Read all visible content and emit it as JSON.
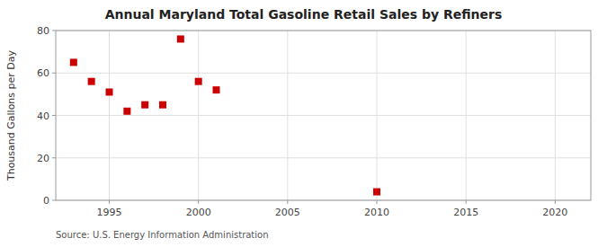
{
  "chart_data": {
    "type": "scatter",
    "title": "Annual Maryland Total Gasoline Retail Sales by Refiners",
    "ylabel": "Thousand Gallons per Day",
    "source": "Source: U.S. Energy Information Administration",
    "x": [
      1993,
      1994,
      1995,
      1996,
      1997,
      1998,
      1999,
      2000,
      2001,
      2010
    ],
    "values": [
      65,
      56,
      51,
      42,
      45,
      45,
      76,
      56,
      52,
      4
    ],
    "color": "#cc0000",
    "marker": "square",
    "xlim": [
      1992,
      2022
    ],
    "ylim": [
      0,
      80
    ],
    "xticks": [
      1995,
      2000,
      2005,
      2010,
      2015,
      2020
    ],
    "yticks": [
      0,
      20,
      40,
      60,
      80
    ],
    "grid": true
  }
}
